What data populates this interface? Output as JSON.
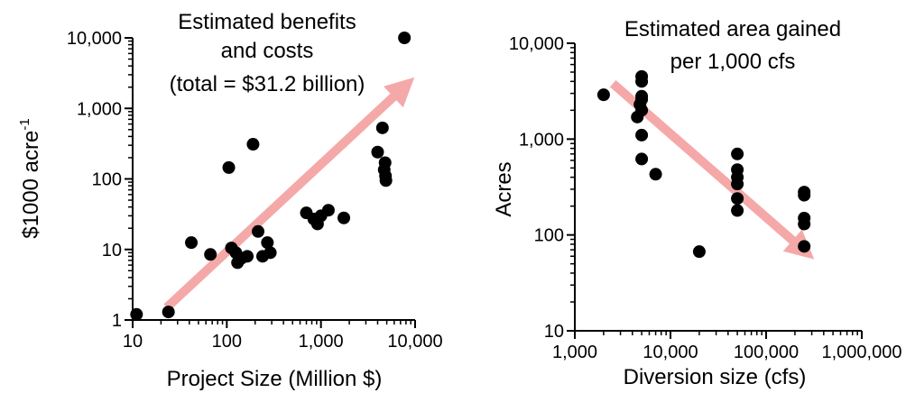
{
  "chart_data": [
    {
      "type": "scatter",
      "title": [
        "Estimated benefits",
        "and costs",
        "(total = $31.2 billion)"
      ],
      "xlabel": "Project Size (Million $)",
      "ylabel": "$1000 acre",
      "ylabel_sup": "-1",
      "xscale": "log",
      "yscale": "log",
      "xlim": [
        10,
        10000
      ],
      "ylim": [
        1,
        10000
      ],
      "xticks": [
        10,
        100,
        1000,
        10000
      ],
      "xtick_labels": [
        "10",
        "100",
        "1,000",
        "10,000"
      ],
      "yticks": [
        1,
        10,
        100,
        1000,
        10000
      ],
      "ytick_labels": [
        "1",
        "10",
        "100",
        "1,000",
        "10,000"
      ],
      "points": [
        {
          "x": 11,
          "y": 1.2
        },
        {
          "x": 24,
          "y": 1.3
        },
        {
          "x": 42,
          "y": 12.5
        },
        {
          "x": 67,
          "y": 8.5
        },
        {
          "x": 105,
          "y": 145
        },
        {
          "x": 112,
          "y": 10.5
        },
        {
          "x": 125,
          "y": 9
        },
        {
          "x": 130,
          "y": 6.5
        },
        {
          "x": 143,
          "y": 7.5
        },
        {
          "x": 165,
          "y": 8
        },
        {
          "x": 190,
          "y": 310
        },
        {
          "x": 215,
          "y": 18
        },
        {
          "x": 240,
          "y": 8
        },
        {
          "x": 270,
          "y": 12.5
        },
        {
          "x": 290,
          "y": 9
        },
        {
          "x": 700,
          "y": 33
        },
        {
          "x": 840,
          "y": 27
        },
        {
          "x": 920,
          "y": 23
        },
        {
          "x": 1000,
          "y": 30
        },
        {
          "x": 1200,
          "y": 36
        },
        {
          "x": 1750,
          "y": 28
        },
        {
          "x": 4000,
          "y": 240
        },
        {
          "x": 4500,
          "y": 530
        },
        {
          "x": 4700,
          "y": 135
        },
        {
          "x": 4800,
          "y": 170
        },
        {
          "x": 4850,
          "y": 110
        },
        {
          "x": 4900,
          "y": 95
        },
        {
          "x": 7700,
          "y": 10000
        }
      ],
      "trend_arrow": {
        "from": {
          "x": 23,
          "y": 1.5
        },
        "to": {
          "x": 7600,
          "y": 2000
        },
        "color": "#f4a9a8"
      },
      "point_color": "#000000",
      "grid": false
    },
    {
      "type": "scatter",
      "title": [
        "Estimated area gained",
        "per 1,000 cfs"
      ],
      "xlabel": "Diversion size (cfs)",
      "ylabel": "Acres",
      "xscale": "log",
      "yscale": "log",
      "xlim": [
        1000,
        1000000
      ],
      "ylim": [
        10,
        10000
      ],
      "xticks": [
        1000,
        10000,
        100000,
        1000000
      ],
      "xtick_labels": [
        "1,000",
        "10,000",
        "100,000",
        "1,000,000"
      ],
      "yticks": [
        10,
        100,
        1000,
        10000
      ],
      "ytick_labels": [
        "10",
        "100",
        "1,000",
        "10,000"
      ],
      "points": [
        {
          "x": 2000,
          "y": 2900
        },
        {
          "x": 4500,
          "y": 1700
        },
        {
          "x": 4800,
          "y": 2300
        },
        {
          "x": 5000,
          "y": 4500
        },
        {
          "x": 5000,
          "y": 4000
        },
        {
          "x": 5000,
          "y": 2800
        },
        {
          "x": 5000,
          "y": 2600
        },
        {
          "x": 5000,
          "y": 2000
        },
        {
          "x": 5000,
          "y": 1100
        },
        {
          "x": 5000,
          "y": 620
        },
        {
          "x": 7000,
          "y": 430
        },
        {
          "x": 20000,
          "y": 67
        },
        {
          "x": 50000,
          "y": 700
        },
        {
          "x": 50000,
          "y": 480
        },
        {
          "x": 50000,
          "y": 400
        },
        {
          "x": 50000,
          "y": 340
        },
        {
          "x": 50000,
          "y": 240
        },
        {
          "x": 50000,
          "y": 180
        },
        {
          "x": 250000,
          "y": 280
        },
        {
          "x": 250000,
          "y": 260
        },
        {
          "x": 250000,
          "y": 150
        },
        {
          "x": 250000,
          "y": 130
        },
        {
          "x": 250000,
          "y": 76
        }
      ],
      "trend_arrow": {
        "from": {
          "x": 2500,
          "y": 3800
        },
        "to": {
          "x": 245000,
          "y": 70
        },
        "color": "#f4a9a8"
      },
      "point_color": "#000000",
      "grid": false
    }
  ]
}
